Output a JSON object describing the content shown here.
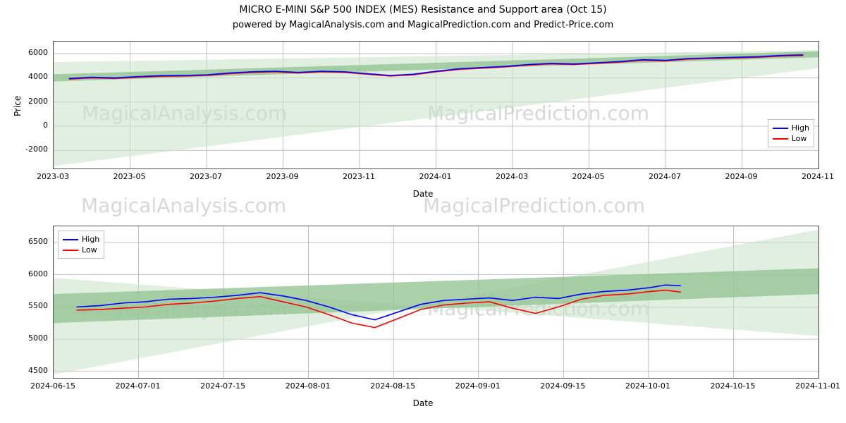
{
  "title": "MICRO E-MINI S&P 500 INDEX (MES) Resistance and Support area (Oct 15)",
  "subtitle": "powered by MagicalAnalysis.com and MagicalPrediction.com and Predict-Price.com",
  "watermarks": {
    "left": "MagicalAnalysis.com",
    "right": "MagicalPrediction.com"
  },
  "colors": {
    "high": "#0000ff",
    "low": "#ff0000",
    "band_fill": "#c9e2c9",
    "band_core": "#8fc28f",
    "grid": "#b0b0b0",
    "border": "#4f4f4f",
    "bg": "#ffffff"
  },
  "legend": {
    "high": "High",
    "low": "Low"
  },
  "chart1": {
    "type": "line",
    "xlabel": "Date",
    "ylabel": "Price",
    "ylim": [
      -3500,
      7000
    ],
    "yticks": [
      -2000,
      0,
      2000,
      4000,
      6000
    ],
    "xticks": [
      "2023-03",
      "2023-05",
      "2023-07",
      "2023-09",
      "2023-11",
      "2024-01",
      "2024-03",
      "2024-05",
      "2024-07",
      "2024-09",
      "2024-11"
    ],
    "xrange": [
      "2023-02-01",
      "2024-11-15"
    ],
    "band_outer": [
      [
        0,
        -3300
      ],
      [
        0,
        5300
      ],
      [
        1,
        6300
      ],
      [
        1,
        4800
      ]
    ],
    "band_inner": [
      [
        0,
        3700
      ],
      [
        0,
        4300
      ],
      [
        1,
        5700
      ],
      [
        1,
        6200
      ]
    ],
    "high": [
      [
        0.02,
        3950
      ],
      [
        0.05,
        4050
      ],
      [
        0.08,
        4000
      ],
      [
        0.11,
        4100
      ],
      [
        0.14,
        4180
      ],
      [
        0.17,
        4200
      ],
      [
        0.2,
        4250
      ],
      [
        0.23,
        4400
      ],
      [
        0.26,
        4500
      ],
      [
        0.29,
        4550
      ],
      [
        0.32,
        4450
      ],
      [
        0.35,
        4550
      ],
      [
        0.38,
        4500
      ],
      [
        0.41,
        4350
      ],
      [
        0.44,
        4200
      ],
      [
        0.47,
        4300
      ],
      [
        0.5,
        4550
      ],
      [
        0.53,
        4750
      ],
      [
        0.56,
        4850
      ],
      [
        0.59,
        4950
      ],
      [
        0.62,
        5100
      ],
      [
        0.65,
        5200
      ],
      [
        0.68,
        5150
      ],
      [
        0.71,
        5250
      ],
      [
        0.74,
        5350
      ],
      [
        0.77,
        5500
      ],
      [
        0.8,
        5450
      ],
      [
        0.83,
        5600
      ],
      [
        0.86,
        5650
      ],
      [
        0.89,
        5700
      ],
      [
        0.92,
        5750
      ],
      [
        0.95,
        5850
      ],
      [
        0.98,
        5900
      ]
    ],
    "low": [
      [
        0.02,
        3900
      ],
      [
        0.05,
        4000
      ],
      [
        0.08,
        3950
      ],
      [
        0.11,
        4050
      ],
      [
        0.14,
        4130
      ],
      [
        0.17,
        4150
      ],
      [
        0.2,
        4200
      ],
      [
        0.23,
        4350
      ],
      [
        0.26,
        4450
      ],
      [
        0.29,
        4500
      ],
      [
        0.32,
        4400
      ],
      [
        0.35,
        4500
      ],
      [
        0.38,
        4450
      ],
      [
        0.41,
        4300
      ],
      [
        0.44,
        4150
      ],
      [
        0.47,
        4250
      ],
      [
        0.5,
        4500
      ],
      [
        0.53,
        4700
      ],
      [
        0.56,
        4800
      ],
      [
        0.59,
        4900
      ],
      [
        0.62,
        5050
      ],
      [
        0.65,
        5150
      ],
      [
        0.68,
        5100
      ],
      [
        0.71,
        5200
      ],
      [
        0.74,
        5300
      ],
      [
        0.77,
        5450
      ],
      [
        0.8,
        5400
      ],
      [
        0.83,
        5550
      ],
      [
        0.86,
        5600
      ],
      [
        0.89,
        5650
      ],
      [
        0.92,
        5700
      ],
      [
        0.95,
        5800
      ],
      [
        0.98,
        5850
      ]
    ],
    "legend_pos": "right"
  },
  "chart2": {
    "type": "line",
    "xlabel": "Date",
    "ylabel": "",
    "ylim": [
      4400,
      6750
    ],
    "yticks": [
      4500,
      5000,
      5500,
      6000,
      6500
    ],
    "xticks": [
      "2024-06-15",
      "2024-07-01",
      "2024-07-15",
      "2024-08-01",
      "2024-08-15",
      "2024-09-01",
      "2024-09-15",
      "2024-10-01",
      "2024-10-15",
      "2024-11-01"
    ],
    "xrange": [
      "2024-06-10",
      "2024-11-05"
    ],
    "band_outer": [
      [
        0,
        4450
      ],
      [
        0,
        5950
      ],
      [
        1,
        5050
      ],
      [
        1,
        6700
      ]
    ],
    "band_inner": [
      [
        0,
        5250
      ],
      [
        0,
        5700
      ],
      [
        1,
        5700
      ],
      [
        1,
        6100
      ]
    ],
    "high": [
      [
        0.03,
        5500
      ],
      [
        0.06,
        5520
      ],
      [
        0.09,
        5560
      ],
      [
        0.12,
        5580
      ],
      [
        0.15,
        5620
      ],
      [
        0.18,
        5630
      ],
      [
        0.21,
        5650
      ],
      [
        0.24,
        5680
      ],
      [
        0.27,
        5720
      ],
      [
        0.3,
        5670
      ],
      [
        0.33,
        5600
      ],
      [
        0.36,
        5500
      ],
      [
        0.39,
        5380
      ],
      [
        0.42,
        5300
      ],
      [
        0.45,
        5420
      ],
      [
        0.48,
        5540
      ],
      [
        0.51,
        5600
      ],
      [
        0.54,
        5620
      ],
      [
        0.57,
        5640
      ],
      [
        0.6,
        5600
      ],
      [
        0.63,
        5650
      ],
      [
        0.66,
        5630
      ],
      [
        0.69,
        5700
      ],
      [
        0.72,
        5740
      ],
      [
        0.75,
        5760
      ],
      [
        0.78,
        5800
      ],
      [
        0.8,
        5840
      ],
      [
        0.82,
        5830
      ]
    ],
    "low": [
      [
        0.03,
        5450
      ],
      [
        0.06,
        5460
      ],
      [
        0.09,
        5480
      ],
      [
        0.12,
        5500
      ],
      [
        0.15,
        5540
      ],
      [
        0.18,
        5560
      ],
      [
        0.21,
        5590
      ],
      [
        0.24,
        5630
      ],
      [
        0.27,
        5660
      ],
      [
        0.3,
        5580
      ],
      [
        0.33,
        5500
      ],
      [
        0.36,
        5380
      ],
      [
        0.39,
        5250
      ],
      [
        0.42,
        5180
      ],
      [
        0.45,
        5320
      ],
      [
        0.48,
        5460
      ],
      [
        0.51,
        5530
      ],
      [
        0.54,
        5560
      ],
      [
        0.57,
        5580
      ],
      [
        0.6,
        5480
      ],
      [
        0.63,
        5400
      ],
      [
        0.66,
        5500
      ],
      [
        0.69,
        5620
      ],
      [
        0.72,
        5680
      ],
      [
        0.75,
        5700
      ],
      [
        0.78,
        5740
      ],
      [
        0.8,
        5760
      ],
      [
        0.82,
        5730
      ]
    ],
    "legend_pos": "left"
  }
}
